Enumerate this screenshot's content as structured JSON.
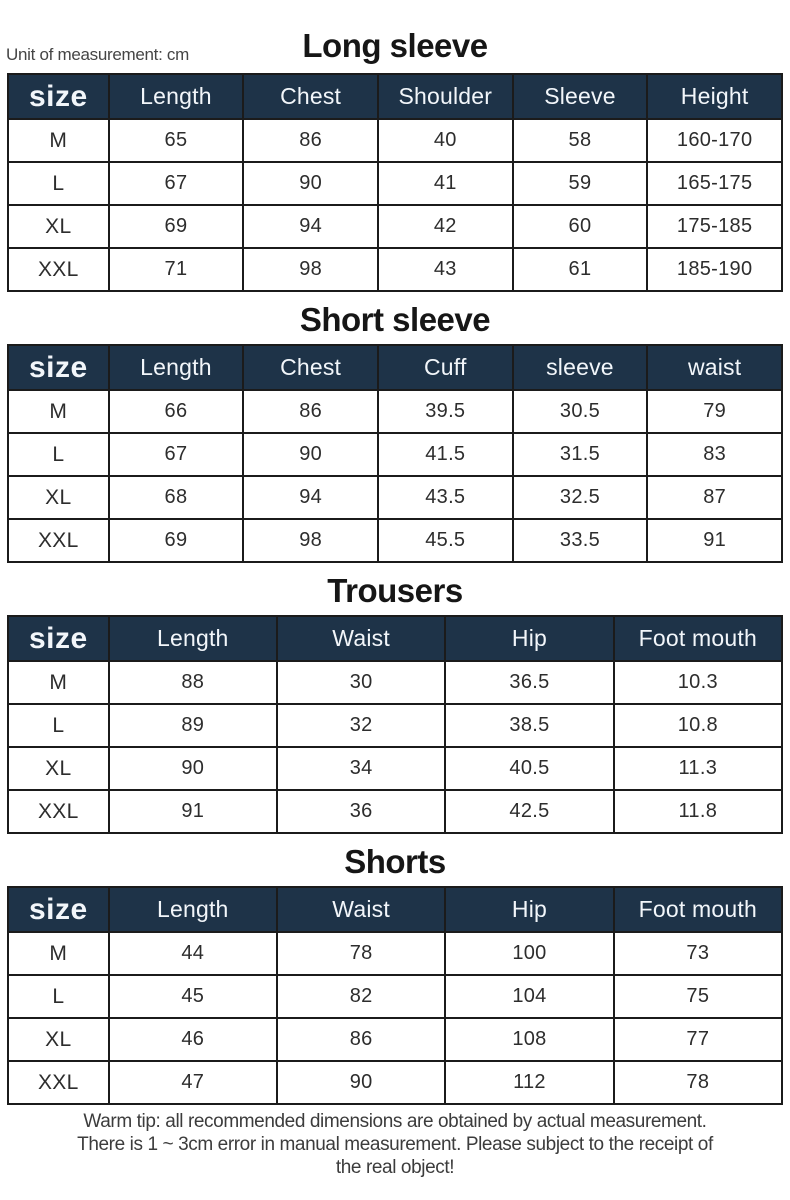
{
  "page": {
    "unit_note": "Unit of measurement: cm"
  },
  "colors": {
    "header_bg": "#1e3348",
    "header_text": "#f2f6fa",
    "border": "#1b1b1b",
    "title_text": "#161616"
  },
  "tables": [
    {
      "title": "Long sleeve",
      "headers": [
        "size",
        "Length",
        "Chest",
        "Shoulder",
        "Sleeve",
        "Height"
      ],
      "rows": [
        [
          "M",
          "65",
          "86",
          "40",
          "58",
          "160-170"
        ],
        [
          "L",
          "67",
          "90",
          "41",
          "59",
          "165-175"
        ],
        [
          "XL",
          "69",
          "94",
          "42",
          "60",
          "175-185"
        ],
        [
          "XXL",
          "71",
          "98",
          "43",
          "61",
          "185-190"
        ]
      ]
    },
    {
      "title": "Short sleeve",
      "headers": [
        "size",
        "Length",
        "Chest",
        "Cuff",
        "sleeve",
        "waist"
      ],
      "rows": [
        [
          "M",
          "66",
          "86",
          "39.5",
          "30.5",
          "79"
        ],
        [
          "L",
          "67",
          "90",
          "41.5",
          "31.5",
          "83"
        ],
        [
          "XL",
          "68",
          "94",
          "43.5",
          "32.5",
          "87"
        ],
        [
          "XXL",
          "69",
          "98",
          "45.5",
          "33.5",
          "91"
        ]
      ]
    },
    {
      "title": "Trousers",
      "headers": [
        "size",
        "Length",
        "Waist",
        "Hip",
        "Foot mouth"
      ],
      "rows": [
        [
          "M",
          "88",
          "30",
          "36.5",
          "10.3"
        ],
        [
          "L",
          "89",
          "32",
          "38.5",
          "10.8"
        ],
        [
          "XL",
          "90",
          "34",
          "40.5",
          "11.3"
        ],
        [
          "XXL",
          "91",
          "36",
          "42.5",
          "11.8"
        ]
      ]
    },
    {
      "title": "Shorts",
      "headers": [
        "size",
        "Length",
        "Waist",
        "Hip",
        "Foot mouth"
      ],
      "rows": [
        [
          "M",
          "44",
          "78",
          "100",
          "73"
        ],
        [
          "L",
          "45",
          "82",
          "104",
          "75"
        ],
        [
          "XL",
          "46",
          "86",
          "108",
          "77"
        ],
        [
          "XXL",
          "47",
          "90",
          "112",
          "78"
        ]
      ]
    }
  ],
  "footer": {
    "lines": [
      "Warm tip: all recommended dimensions are obtained by actual measurement.",
      "There is 1 ~ 3cm error in manual measurement. Please subject to the receipt of",
      "the real object!"
    ]
  }
}
